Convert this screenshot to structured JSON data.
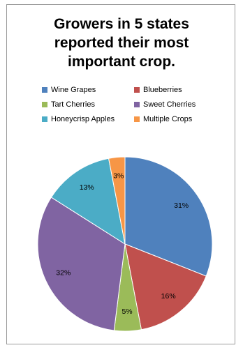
{
  "chart_data": {
    "type": "pie",
    "title": "Growers in 5 states\nreported their most\nimportant crop.",
    "legend_position": "top",
    "slices": [
      {
        "name": "Wine Grapes",
        "value": 31,
        "label": "31%",
        "color": "#4F81BD"
      },
      {
        "name": "Blueberries",
        "value": 16,
        "label": "16%",
        "color": "#C0504D"
      },
      {
        "name": "Tart Cherries",
        "value": 5,
        "label": "5%",
        "color": "#9BBB59"
      },
      {
        "name": "Sweet Cherries",
        "value": 32,
        "label": "32%",
        "color": "#8064A2"
      },
      {
        "name": "Honeycrisp Apples",
        "value": 13,
        "label": "13%",
        "color": "#4BACC6"
      },
      {
        "name": "Multiple Crops",
        "value": 3,
        "label": "3%",
        "color": "#F79646"
      }
    ],
    "legend_order": [
      "Wine Grapes",
      "Blueberries",
      "Tart Cherries",
      "Sweet Cherries",
      "Honeycrisp Apples",
      "Multiple Crops"
    ]
  }
}
